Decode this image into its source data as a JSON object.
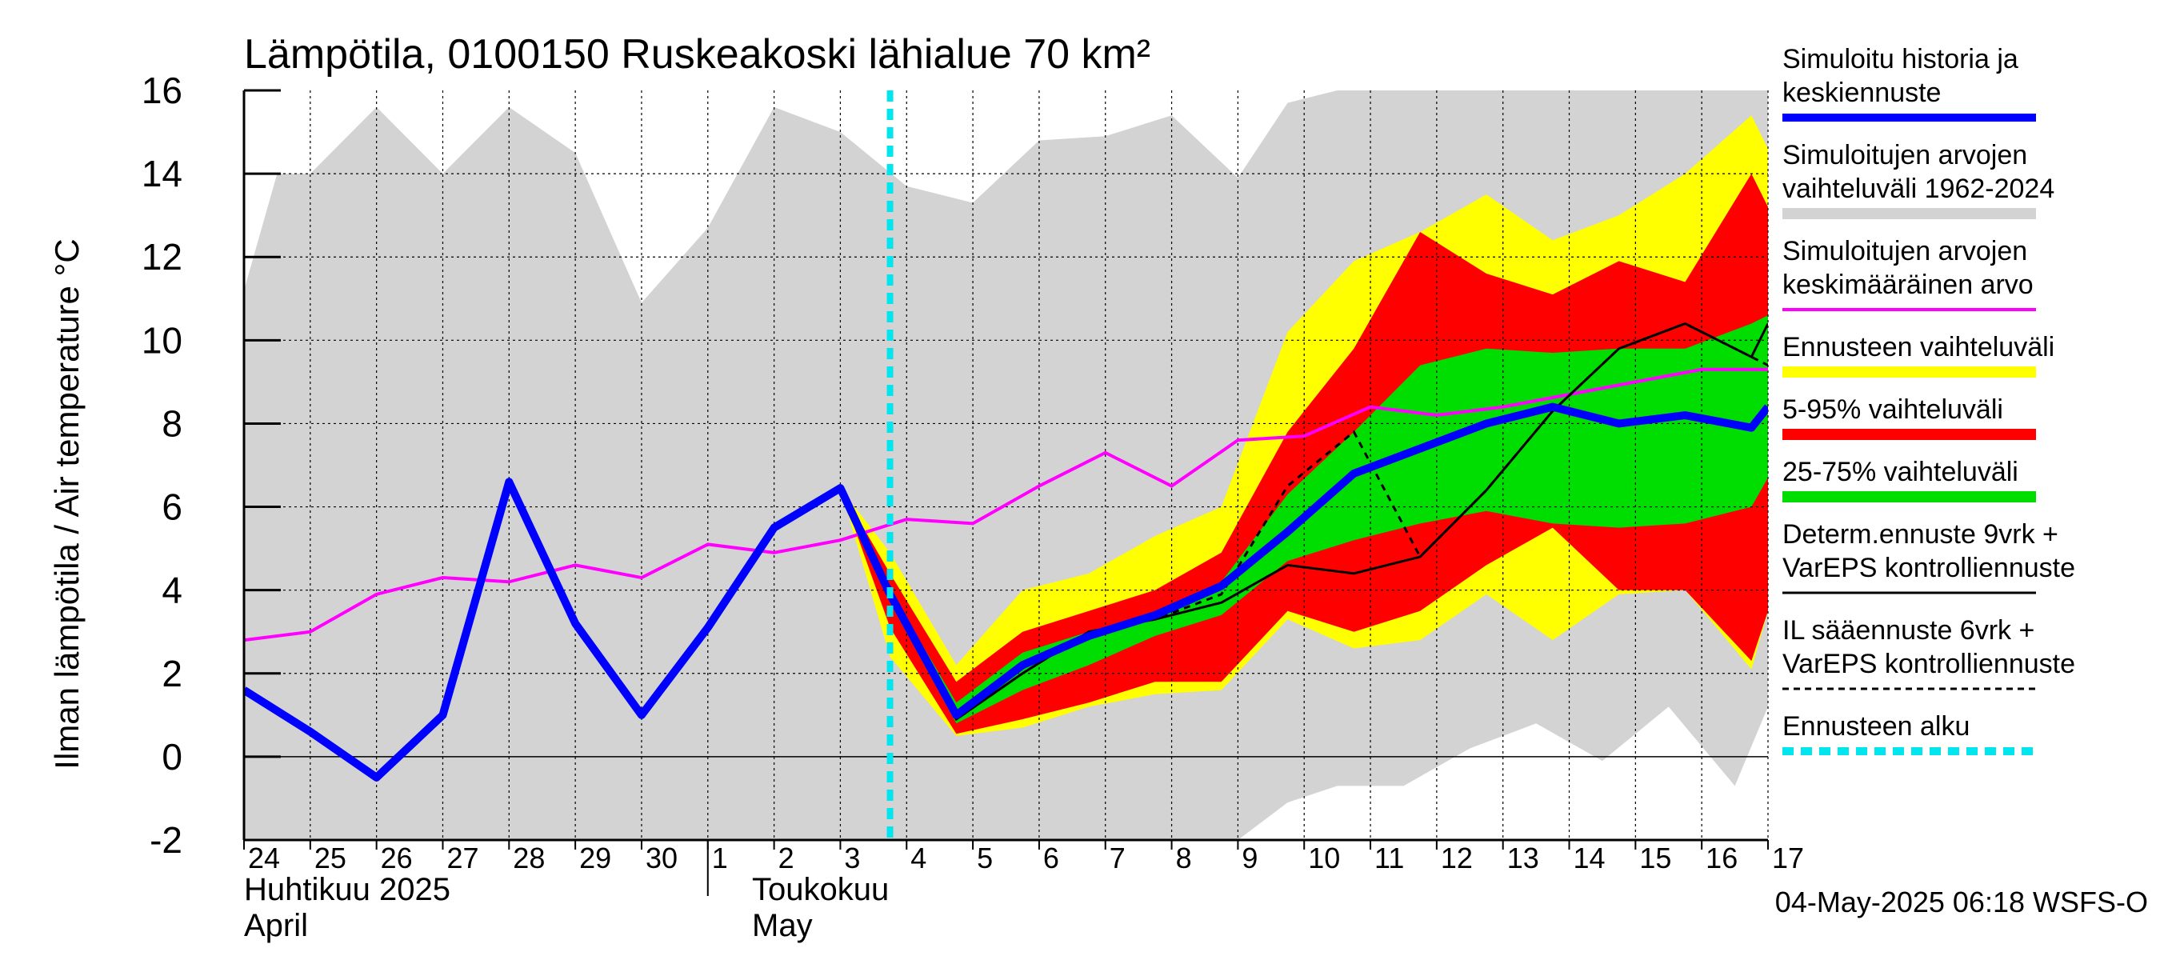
{
  "chart_data": {
    "type": "line",
    "title": "Lämpötila, 0100150 Ruskeakoski lähialue 70 km²",
    "ylabel": "Ilman lämpötila / Air temperature   °C",
    "ylim": [
      -2,
      16
    ],
    "yticks": [
      -2,
      0,
      2,
      4,
      6,
      8,
      10,
      12,
      14,
      16
    ],
    "xlim": [
      0,
      23
    ],
    "day_labels": [
      "24",
      "25",
      "26",
      "27",
      "28",
      "29",
      "30",
      "1",
      "2",
      "3",
      "4",
      "5",
      "6",
      "7",
      "8",
      "9",
      "10",
      "11",
      "12",
      "13",
      "14",
      "15",
      "16",
      "17"
    ],
    "month_labels": {
      "april_fi": "Huhtikuu  2025",
      "april_en": "April",
      "may_fi": "Toukokuu",
      "may_en": "May"
    },
    "forecast_start_x": 9.75,
    "footer": "04-May-2025 06:18 WSFS-O",
    "legend": [
      {
        "id": "sim",
        "lines": [
          "Simuloitu historia ja",
          "keskiennuste"
        ],
        "color": "#0000ff",
        "style": "thick"
      },
      {
        "id": "hist_range",
        "lines": [
          "Simuloitujen arvojen",
          "vaihteluväli 1962-2024"
        ],
        "color": "#d3d3d3",
        "style": "band"
      },
      {
        "id": "hist_mean",
        "lines": [
          "Simuloitujen arvojen",
          "keskimääräinen arvo"
        ],
        "color": "#ff00ff",
        "style": "thin"
      },
      {
        "id": "ens_range",
        "lines": [
          "Ennusteen vaihteluväli"
        ],
        "color": "#ffff00",
        "style": "band"
      },
      {
        "id": "p5_95",
        "lines": [
          "5-95% vaihteluväli"
        ],
        "color": "#ff0000",
        "style": "band"
      },
      {
        "id": "p25_75",
        "lines": [
          "25-75% vaihteluväli"
        ],
        "color": "#00dd00",
        "style": "band"
      },
      {
        "id": "determ",
        "lines": [
          "Determ.ennuste 9vrk +",
          "VarEPS kontrolliennuste"
        ],
        "color": "#000000",
        "style": "solid"
      },
      {
        "id": "il",
        "lines": [
          "IL sääennuste 6vrk  +",
          "  VarEPS kontrolliennuste"
        ],
        "color": "#000000",
        "style": "dashed"
      },
      {
        "id": "start",
        "lines": [
          "Ennusteen alku"
        ],
        "color": "#00e5ee",
        "style": "dotted"
      }
    ],
    "series": {
      "hist_range": {
        "x": [
          0,
          0.5,
          1,
          2,
          3,
          4,
          5,
          6,
          7,
          8,
          9,
          10,
          11,
          12,
          13,
          14,
          15,
          15.75,
          16.5,
          17.5,
          18.5,
          19.5,
          20.5,
          21.5,
          22.5,
          23
        ],
        "upper": [
          11.2,
          14.0,
          14.0,
          15.6,
          14.0,
          15.6,
          14.5,
          10.9,
          12.7,
          15.6,
          15.0,
          13.7,
          13.3,
          14.8,
          14.9,
          15.4,
          13.9,
          15.7,
          16.0,
          16.0,
          16.0,
          16.0,
          16.0,
          16.0,
          16.0,
          16.0
        ],
        "lower": [
          -2,
          -2,
          -2,
          -2,
          -2,
          -2,
          -2,
          -2,
          -2,
          -2,
          -2,
          -2,
          -2,
          -2,
          -2,
          -2,
          -2,
          -1.1,
          -0.7,
          -0.7,
          0.2,
          0.8,
          -0.1,
          1.2,
          -0.7,
          1.2
        ]
      },
      "hist_mean": {
        "x": [
          0,
          1,
          2,
          3,
          4,
          5,
          6,
          7,
          8,
          9,
          10,
          11,
          12,
          13,
          14,
          15,
          16,
          17,
          18,
          19,
          20,
          21,
          22,
          23
        ],
        "y": [
          2.8,
          3.0,
          3.9,
          4.3,
          4.2,
          4.6,
          4.3,
          5.1,
          4.9,
          5.2,
          5.7,
          5.6,
          6.5,
          7.3,
          6.5,
          7.6,
          7.7,
          8.4,
          8.2,
          8.4,
          8.7,
          9.0,
          9.3,
          9.3
        ]
      },
      "ens_range": {
        "x": [
          9,
          9.75,
          10.75,
          11.75,
          12.75,
          13.75,
          14.75,
          15.75,
          16.75,
          17.75,
          18.75,
          19.75,
          20.75,
          21.75,
          22.75,
          23
        ],
        "upper": [
          6.45,
          4.9,
          2.2,
          4.0,
          4.4,
          5.3,
          6.0,
          10.2,
          11.9,
          12.6,
          13.5,
          12.4,
          13.0,
          14.0,
          15.4,
          14.6
        ],
        "lower": [
          6.45,
          2.4,
          0.5,
          0.7,
          1.2,
          1.5,
          1.6,
          3.3,
          2.6,
          2.8,
          3.9,
          2.8,
          3.9,
          4.0,
          2.1,
          3.5
        ]
      },
      "p5_95": {
        "x": [
          9,
          9.75,
          10.75,
          11.75,
          12.75,
          13.75,
          14.75,
          15.75,
          16.75,
          17.75,
          18.75,
          19.75,
          20.75,
          21.75,
          22.75,
          23
        ],
        "upper": [
          6.45,
          4.4,
          1.8,
          3.0,
          3.5,
          4.0,
          4.9,
          7.8,
          9.8,
          12.6,
          11.6,
          11.1,
          11.9,
          11.4,
          14.0,
          13.2
        ],
        "lower": [
          6.45,
          3.1,
          0.55,
          0.9,
          1.3,
          1.8,
          1.8,
          3.5,
          3.0,
          3.5,
          4.6,
          5.5,
          4.0,
          4.0,
          2.3,
          3.5
        ]
      },
      "p25_75": {
        "x": [
          9,
          9.75,
          10.75,
          11.75,
          12.75,
          13.75,
          14.75,
          15.75,
          16.75,
          17.75,
          18.75,
          19.75,
          20.75,
          21.75,
          22.75,
          23
        ],
        "upper": [
          6.45,
          4.0,
          1.3,
          2.5,
          3.0,
          3.4,
          4.2,
          6.3,
          7.8,
          9.4,
          9.8,
          9.7,
          9.8,
          9.8,
          10.4,
          10.6
        ],
        "lower": [
          6.45,
          3.7,
          0.8,
          1.6,
          2.2,
          2.9,
          3.4,
          4.7,
          5.2,
          5.6,
          5.9,
          5.6,
          5.5,
          5.6,
          6.0,
          6.7
        ]
      },
      "sim": {
        "x": [
          0,
          1,
          2,
          3,
          4,
          5,
          6,
          7,
          8,
          9,
          9.75,
          10.75,
          11.75,
          12.75,
          13.75,
          14.75,
          15.75,
          16.75,
          17.75,
          18.75,
          19.75,
          20.75,
          21.75,
          22.75,
          23
        ],
        "y": [
          1.6,
          0.6,
          -0.5,
          1.0,
          6.6,
          3.2,
          1.0,
          3.1,
          5.5,
          6.45,
          3.9,
          1.0,
          2.2,
          2.9,
          3.4,
          4.1,
          5.4,
          6.8,
          7.4,
          8.0,
          8.4,
          8.0,
          8.2,
          7.9,
          8.4
        ]
      },
      "determ": {
        "x": [
          9,
          9.75,
          10.75,
          11.75,
          12.75,
          13.75,
          14.75,
          15.75,
          16.75,
          17.75,
          18.75,
          19.75,
          20.75,
          21.75,
          22.75,
          23
        ],
        "y": [
          6.45,
          3.8,
          0.9,
          2.0,
          3.0,
          3.3,
          3.7,
          4.6,
          4.4,
          4.8,
          6.4,
          8.3,
          9.8,
          10.4,
          9.6,
          10.4
        ]
      },
      "il": {
        "x": [
          9,
          9.75,
          10.75,
          11.75,
          12.75,
          13.75,
          14.75,
          15.75,
          16.75,
          17.75,
          18.75,
          19.75,
          20.75,
          21.75,
          22.75,
          23
        ],
        "y": [
          6.45,
          3.8,
          0.9,
          2.0,
          3.0,
          3.3,
          3.9,
          6.5,
          7.8,
          4.8,
          6.4,
          8.3,
          9.8,
          10.4,
          9.6,
          9.4
        ]
      }
    }
  }
}
